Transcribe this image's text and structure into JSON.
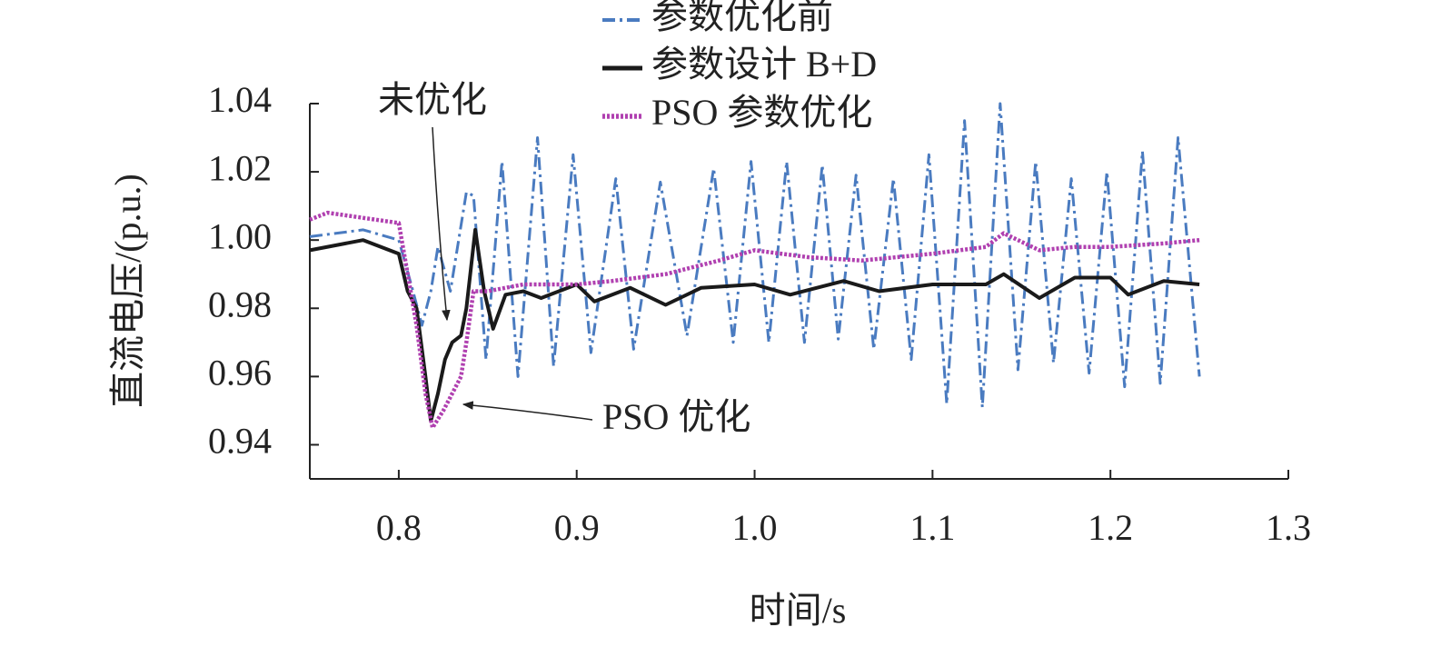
{
  "chart_data": {
    "type": "line",
    "xlabel": "时间/s",
    "ylabel": "直流电压/(p.u.)",
    "xlim": [
      0.75,
      1.3
    ],
    "ylim": [
      0.93,
      1.04
    ],
    "xticks": [
      0.8,
      0.9,
      {
        "value": 1,
        "label": "1.0"
      },
      1.1,
      1.2,
      1.3
    ],
    "yticks": [
      0.94,
      0.96,
      0.98,
      {
        "value": 1,
        "label": "1.00"
      },
      1.02,
      1.04
    ],
    "legend": "top",
    "annotations": [
      {
        "text": "未优化"
      },
      {
        "text": "PSO 优化"
      }
    ],
    "series": [
      {
        "name": "参数优化前",
        "color": "#4a7bc0",
        "line_style": "dashdot",
        "x": [
          0.75,
          0.78,
          0.8,
          0.808,
          0.813,
          0.818,
          0.822,
          0.829,
          0.838,
          0.842,
          0.849,
          0.858,
          0.867,
          0.878,
          0.887,
          0.898,
          0.908,
          0.922,
          0.932,
          0.947,
          0.962,
          0.977,
          0.988,
          0.998,
          1.008,
          1.018,
          1.028,
          1.038,
          1.047,
          1.057,
          1.067,
          1.078,
          1.088,
          1.098,
          1.108,
          1.118,
          1.128,
          1.138,
          1.148,
          1.158,
          1.168,
          1.178,
          1.188,
          1.198,
          1.208,
          1.218,
          1.228,
          1.238,
          1.25
        ],
        "values": [
          1.001,
          1.003,
          1.0,
          0.985,
          0.975,
          0.985,
          0.998,
          0.985,
          1.014,
          1.013,
          0.965,
          1.023,
          0.96,
          1.03,
          0.963,
          1.025,
          0.967,
          1.018,
          0.968,
          1.017,
          0.972,
          1.021,
          0.97,
          1.023,
          0.97,
          1.023,
          0.97,
          1.022,
          0.971,
          1.019,
          0.968,
          1.018,
          0.965,
          1.025,
          0.952,
          1.035,
          0.951,
          1.04,
          0.962,
          1.023,
          0.964,
          1.018,
          0.961,
          1.02,
          0.957,
          1.026,
          0.958,
          1.03,
          0.96
        ]
      },
      {
        "name": "参数设计 B+D",
        "color": "#1a1a1a",
        "line_style": "solid",
        "x": [
          0.75,
          0.78,
          0.8,
          0.805,
          0.81,
          0.815,
          0.818,
          0.822,
          0.826,
          0.83,
          0.835,
          0.838,
          0.843,
          0.848,
          0.853,
          0.86,
          0.87,
          0.88,
          0.9,
          0.91,
          0.93,
          0.95,
          0.97,
          1.0,
          1.02,
          1.05,
          1.07,
          1.1,
          1.13,
          1.14,
          1.16,
          1.18,
          1.2,
          1.21,
          1.23,
          1.25
        ],
        "values": [
          0.997,
          1.0,
          0.996,
          0.985,
          0.98,
          0.96,
          0.947,
          0.955,
          0.965,
          0.97,
          0.972,
          0.98,
          1.003,
          0.985,
          0.974,
          0.984,
          0.985,
          0.983,
          0.987,
          0.982,
          0.986,
          0.981,
          0.986,
          0.987,
          0.984,
          0.988,
          0.985,
          0.987,
          0.987,
          0.99,
          0.983,
          0.989,
          0.989,
          0.984,
          0.988,
          0.987
        ]
      },
      {
        "name": "PSO 参数优化",
        "color": "#b040b0",
        "line_style": "dotted",
        "x": [
          0.75,
          0.76,
          0.8,
          0.805,
          0.81,
          0.815,
          0.819,
          0.825,
          0.83,
          0.835,
          0.838,
          0.842,
          0.85,
          0.87,
          0.9,
          0.92,
          0.95,
          0.98,
          1.0,
          1.03,
          1.06,
          1.08,
          1.1,
          1.13,
          1.14,
          1.16,
          1.18,
          1.2,
          1.23,
          1.25
        ],
        "values": [
          1.006,
          1.008,
          1.005,
          0.99,
          0.975,
          0.955,
          0.945,
          0.95,
          0.955,
          0.96,
          0.97,
          0.985,
          0.985,
          0.987,
          0.987,
          0.988,
          0.99,
          0.994,
          0.997,
          0.995,
          0.994,
          0.995,
          0.996,
          0.998,
          1.002,
          0.997,
          0.998,
          0.998,
          0.999,
          1.0
        ]
      }
    ]
  }
}
